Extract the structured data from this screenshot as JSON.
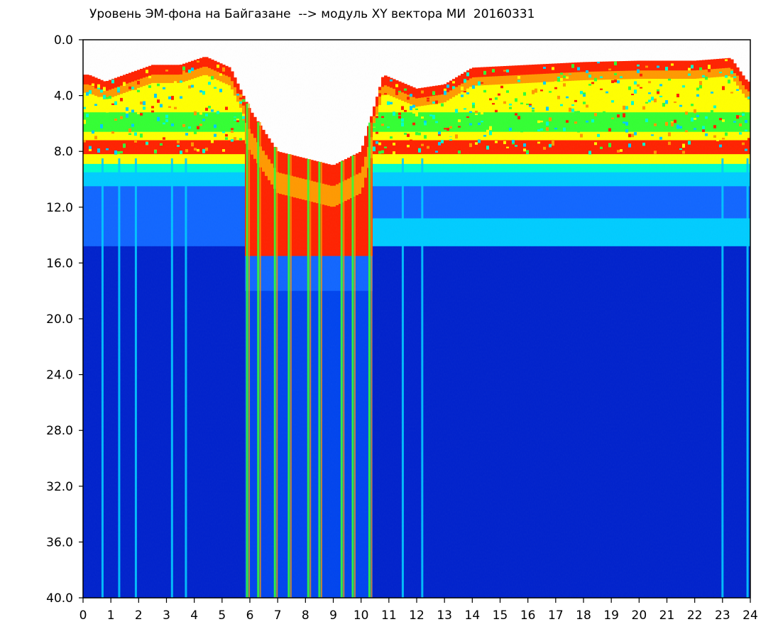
{
  "chart_data": {
    "type": "heatmap",
    "title": "Уровень ЭМ-фона на Байгазане  --> модуль XY вектора МИ  20160331",
    "x_ticks": [
      "0",
      "1",
      "2",
      "3",
      "4",
      "5",
      "6",
      "7",
      "8",
      "9",
      "10",
      "11",
      "12",
      "13",
      "14",
      "15",
      "16",
      "17",
      "18",
      "19",
      "20",
      "21",
      "22",
      "23",
      "24"
    ],
    "y_ticks": [
      "0.0",
      "4.0",
      "8.0",
      "12.0",
      "16.0",
      "20.0",
      "24.0",
      "28.0",
      "32.0",
      "36.0",
      "40.0"
    ],
    "xlim": [
      0,
      24
    ],
    "ylim": [
      0,
      40
    ],
    "y_inverted": true,
    "grid": false,
    "colormap": [
      "#0022cc",
      "#0044ee",
      "#1166ff",
      "#00ccff",
      "#00ffcc",
      "#33ff33",
      "#ffff00",
      "#ff9900",
      "#ff2200"
    ],
    "background_color": "#ffffff",
    "upper_band_top_by_hour": [
      {
        "hour": 0.2,
        "y": 2.5
      },
      {
        "hour": 0.8,
        "y": 3.0
      },
      {
        "hour": 1.5,
        "y": 2.5
      },
      {
        "hour": 2.5,
        "y": 1.8
      },
      {
        "hour": 3.5,
        "y": 1.8
      },
      {
        "hour": 4.4,
        "y": 1.2
      },
      {
        "hour": 5.3,
        "y": 2.0
      },
      {
        "hour": 6.0,
        "y": 5.0
      },
      {
        "hour": 7.0,
        "y": 8.0
      },
      {
        "hour": 8.0,
        "y": 8.5
      },
      {
        "hour": 9.0,
        "y": 9.0
      },
      {
        "hour": 10.0,
        "y": 8.0
      },
      {
        "hour": 10.8,
        "y": 2.5
      },
      {
        "hour": 12.0,
        "y": 3.5
      },
      {
        "hour": 13.0,
        "y": 3.2
      },
      {
        "hour": 14.0,
        "y": 2.0
      },
      {
        "hour": 16.0,
        "y": 1.8
      },
      {
        "hour": 18.0,
        "y": 1.6
      },
      {
        "hour": 20.0,
        "y": 1.5
      },
      {
        "hour": 22.0,
        "y": 1.5
      },
      {
        "hour": 23.3,
        "y": 1.3
      },
      {
        "hour": 23.9,
        "y": 3.0
      }
    ],
    "noisy_interval_hours": [
      5.8,
      10.4
    ],
    "bright_streak_hours": [
      0.7,
      1.3,
      1.9,
      3.2,
      3.7,
      5.9,
      6.3,
      6.9,
      7.4,
      8.1,
      8.5,
      9.3,
      9.7,
      10.3,
      11.5,
      12.2,
      23.0,
      23.9
    ]
  }
}
